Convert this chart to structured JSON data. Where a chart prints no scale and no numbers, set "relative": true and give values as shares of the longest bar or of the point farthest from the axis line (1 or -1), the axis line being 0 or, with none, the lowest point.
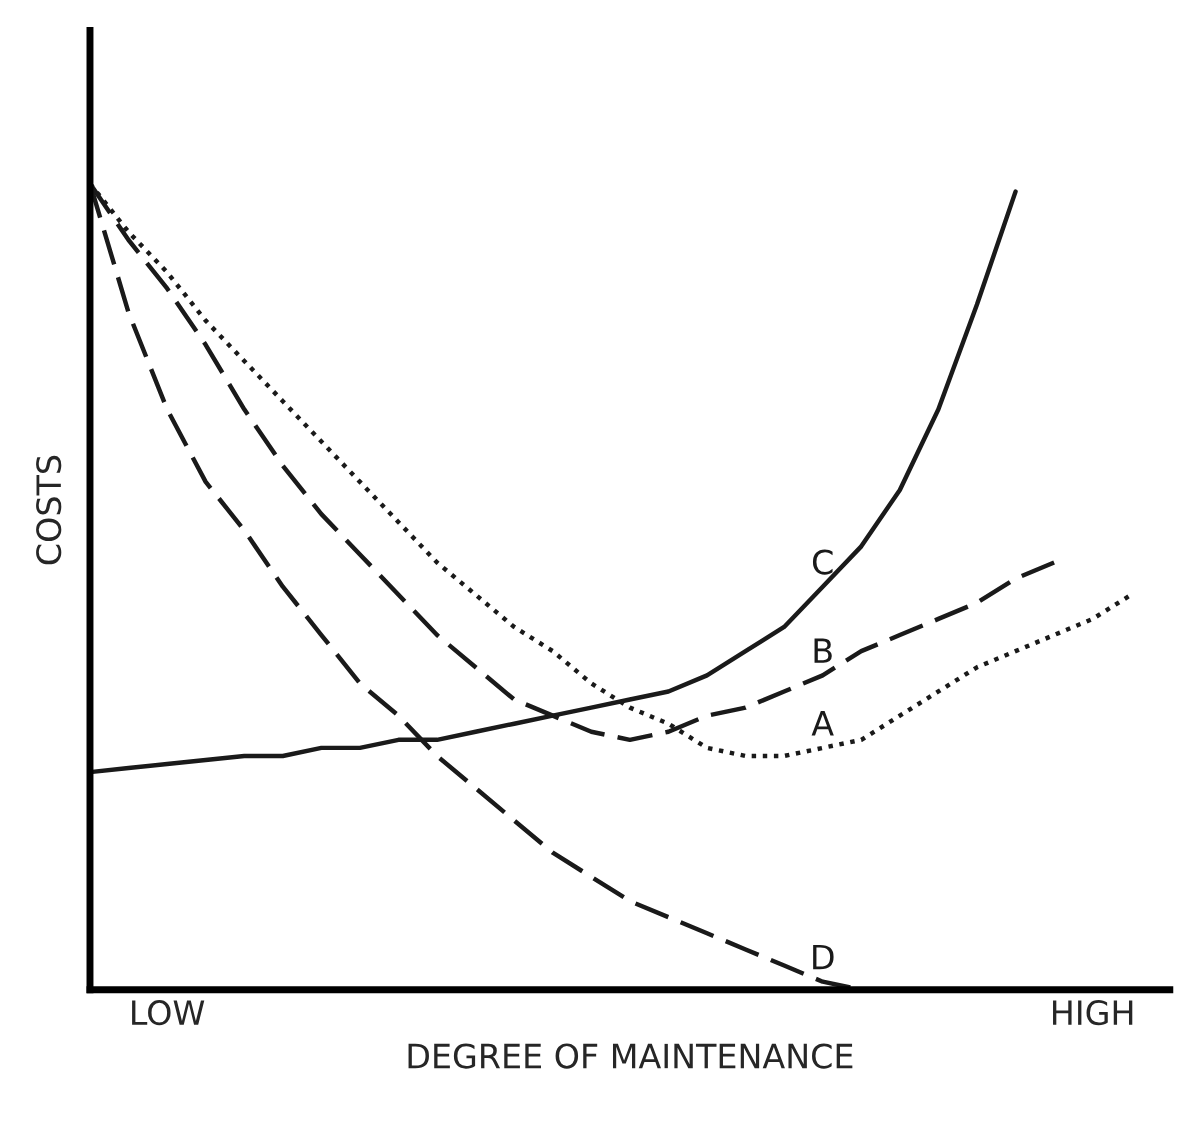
{
  "chart_data": {
    "type": "line",
    "relative": true,
    "xlabel": "DEGREE OF MAINTENANCE",
    "ylabel": "COSTS",
    "categories": [
      null,
      null,
      "LOW",
      null,
      null,
      null,
      null,
      null,
      null,
      null,
      null,
      null,
      null,
      null,
      null,
      null,
      null,
      null,
      null,
      null,
      null,
      null,
      null,
      null,
      null,
      null,
      "HIGH",
      null,
      null
    ],
    "tick_labels": "x",
    "grid": false,
    "legend": false,
    "marker": "none",
    "series": [
      {
        "name": "C",
        "color": "#1a1a1a",
        "line_style": "solid",
        "values": [
          0.27,
          0.275,
          0.28,
          0.285,
          0.29,
          0.29,
          0.3,
          0.3,
          0.31,
          0.31,
          0.32,
          0.33,
          0.34,
          0.35,
          0.36,
          0.37,
          0.39,
          0.42,
          0.45,
          0.5,
          0.55,
          0.62,
          0.72,
          0.85,
          0.99,
          null,
          null,
          null,
          null
        ]
      },
      {
        "name": "B",
        "color": "#1a1a1a",
        "line_style": "dashed",
        "values": [
          1.0,
          0.93,
          0.87,
          0.8,
          0.72,
          0.65,
          0.59,
          0.54,
          0.49,
          0.44,
          0.4,
          0.36,
          0.34,
          0.32,
          0.31,
          0.32,
          0.34,
          0.35,
          0.37,
          0.39,
          0.42,
          0.44,
          0.46,
          0.48,
          0.51,
          0.53,
          null,
          null,
          null
        ]
      },
      {
        "name": "A",
        "color": "#1a1a1a",
        "line_style": "dotted",
        "values": [
          1.0,
          0.94,
          0.89,
          0.83,
          0.78,
          0.73,
          0.68,
          0.63,
          0.58,
          0.53,
          0.49,
          0.45,
          0.42,
          0.38,
          0.35,
          0.33,
          0.3,
          0.29,
          0.29,
          0.3,
          0.31,
          0.34,
          0.37,
          0.4,
          0.42,
          0.44,
          0.46,
          0.49,
          null
        ]
      },
      {
        "name": "D",
        "color": "#1a1a1a",
        "line_style": "dashed",
        "values": [
          1.0,
          0.84,
          0.72,
          0.63,
          0.57,
          0.5,
          0.44,
          0.38,
          0.34,
          0.29,
          0.25,
          0.21,
          0.17,
          0.14,
          0.11,
          0.09,
          0.07,
          0.05,
          0.03,
          0.01,
          0,
          null,
          null,
          null,
          null,
          null,
          null,
          null,
          null
        ]
      }
    ]
  }
}
